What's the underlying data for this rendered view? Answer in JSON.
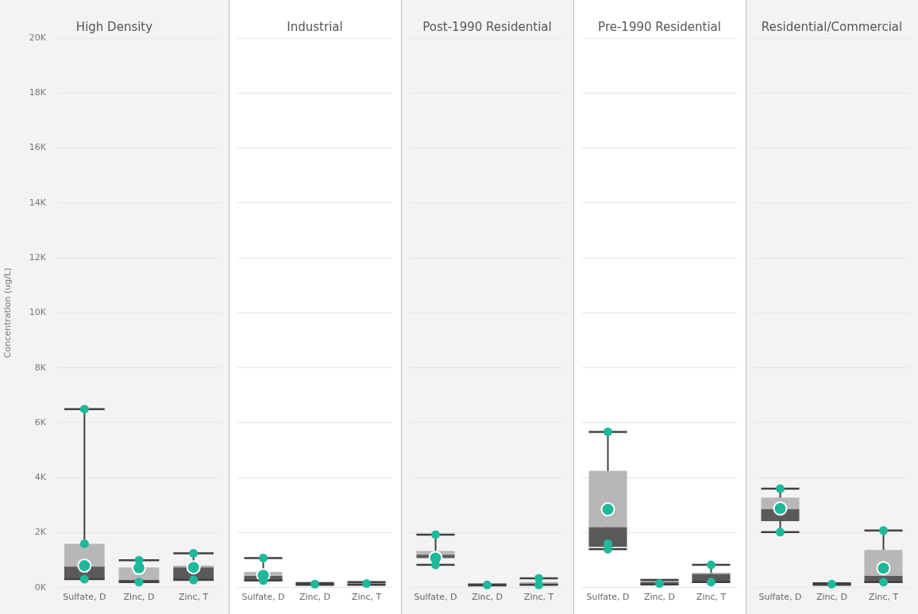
{
  "chart_data": [
    {
      "type": "box",
      "title": "High Density",
      "ylabel": "Concentration (ug/L)",
      "categories": [
        "Sulfate, D",
        "Zinc, D",
        "Zinc, T"
      ],
      "boxes": [
        {
          "low": 310,
          "q1": 310,
          "median": 770,
          "q3": 1600,
          "high": 6500,
          "mean": 800,
          "outliers": [
            310,
            1600,
            6500
          ]
        },
        {
          "low": 200,
          "q1": 200,
          "median": 280,
          "q3": 740,
          "high": 1000,
          "mean": 720,
          "outliers": [
            200,
            1000
          ]
        },
        {
          "low": 280,
          "q1": 280,
          "median": 740,
          "q3": 800,
          "high": 1250,
          "mean": 740,
          "outliers": [
            280,
            1250
          ]
        }
      ],
      "ylim": [
        0,
        20000
      ],
      "yticks": [
        {
          "value": 0,
          "label": "0K"
        },
        {
          "value": 2000,
          "label": "2K"
        },
        {
          "value": 4000,
          "label": "4K"
        },
        {
          "value": 6000,
          "label": "6K"
        },
        {
          "value": 8000,
          "label": "8K"
        },
        {
          "value": 10000,
          "label": "10K"
        },
        {
          "value": 12000,
          "label": "12K"
        },
        {
          "value": 14000,
          "label": "14K"
        },
        {
          "value": 16000,
          "label": "16K"
        },
        {
          "value": 18000,
          "label": "18K"
        },
        {
          "value": 20000,
          "label": "20K"
        }
      ],
      "grid": "y"
    },
    {
      "type": "box",
      "title": "Industrial",
      "categories": [
        "Sulfate, D",
        "Zinc, D",
        "Zinc, T"
      ],
      "boxes": [
        {
          "low": 260,
          "q1": 260,
          "median": 430,
          "q3": 570,
          "high": 1080,
          "mean": 450,
          "outliers": [
            260,
            1080
          ]
        },
        {
          "low": 100,
          "q1": 100,
          "median": 130,
          "q3": 170,
          "high": 170,
          "outliers": [
            130
          ]
        },
        {
          "low": 100,
          "q1": 100,
          "median": 150,
          "q3": 200,
          "high": 200,
          "outliers": [
            150
          ]
        }
      ],
      "ylim": [
        0,
        20000
      ],
      "yticks": [
        0,
        2000,
        4000,
        6000,
        8000,
        10000,
        12000,
        14000,
        16000,
        18000,
        20000
      ],
      "grid": "y",
      "tick_labels": "x"
    },
    {
      "type": "box",
      "title": "Post-1990 Residential",
      "categories": [
        "Sulfate, D",
        "Zinc, D",
        "Zinc, T"
      ],
      "boxes": [
        {
          "low": 830,
          "q1": 1080,
          "median": 1200,
          "q3": 1340,
          "high": 1930,
          "mean": 1080,
          "outliers": [
            830,
            1930
          ]
        },
        {
          "low": 80,
          "q1": 80,
          "median": 100,
          "q3": 120,
          "high": 120,
          "outliers": [
            100
          ]
        },
        {
          "low": 100,
          "q1": 100,
          "median": 150,
          "q3": 200,
          "high": 340,
          "outliers": [
            100,
            340
          ]
        }
      ],
      "ylim": [
        0,
        20000
      ],
      "yticks": [
        0,
        2000,
        4000,
        6000,
        8000,
        10000,
        12000,
        14000,
        16000,
        18000,
        20000
      ],
      "grid": "y",
      "tick_labels": "x"
    },
    {
      "type": "box",
      "title": "Pre-1990 Residential",
      "categories": [
        "Sulfate, D",
        "Zinc, D",
        "Zinc, T"
      ],
      "boxes": [
        {
          "low": 1400,
          "q1": 1480,
          "median": 2200,
          "q3": 4250,
          "high": 5670,
          "mean": 2850,
          "outliers": [
            1400,
            1600,
            5670
          ]
        },
        {
          "low": 120,
          "q1": 120,
          "median": 200,
          "q3": 280,
          "high": 280,
          "outliers": [
            150
          ]
        },
        {
          "low": 200,
          "q1": 200,
          "median": 500,
          "q3": 540,
          "high": 830,
          "outliers": [
            200,
            830
          ]
        }
      ],
      "ylim": [
        0,
        20000
      ],
      "yticks": [
        0,
        2000,
        4000,
        6000,
        8000,
        10000,
        12000,
        14000,
        16000,
        18000,
        20000
      ],
      "grid": "y",
      "tick_labels": "x"
    },
    {
      "type": "box",
      "title": "Residential/Commercial",
      "categories": [
        "Sulfate, D",
        "Zinc, D",
        "Zinc, T"
      ],
      "boxes": [
        {
          "low": 2020,
          "q1": 2420,
          "median": 2860,
          "q3": 3280,
          "high": 3600,
          "mean": 2880,
          "outliers": [
            2020,
            3600
          ]
        },
        {
          "low": 100,
          "q1": 100,
          "median": 130,
          "q3": 160,
          "high": 160,
          "outliers": [
            130
          ]
        },
        {
          "low": 200,
          "q1": 200,
          "median": 430,
          "q3": 1370,
          "high": 2080,
          "mean": 710,
          "outliers": [
            200,
            2080
          ]
        }
      ],
      "ylim": [
        0,
        20000
      ],
      "yticks": [
        0,
        2000,
        4000,
        6000,
        8000,
        10000,
        12000,
        14000,
        16000,
        18000,
        20000
      ],
      "grid": "y",
      "tick_labels": "x"
    }
  ]
}
